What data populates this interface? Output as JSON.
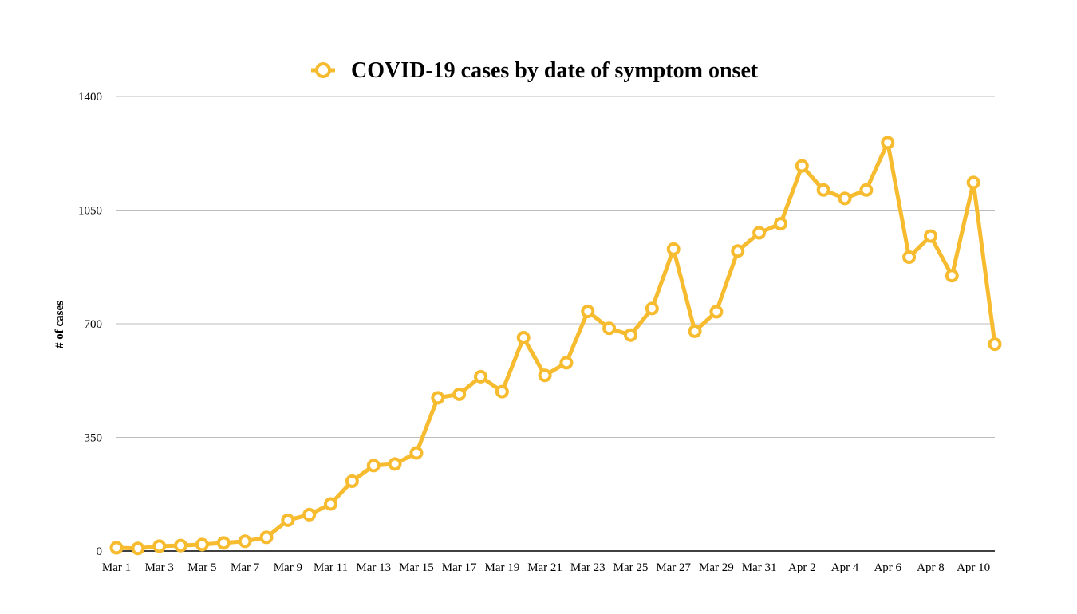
{
  "chart_data": {
    "type": "line",
    "title": "COVID-19 cases by date of symptom onset",
    "legend": {
      "label": "COVID-19 cases by date of symptom onset",
      "position": "top"
    },
    "xlabel": "",
    "ylabel": "# of cases",
    "ylim": [
      0,
      1400
    ],
    "yticks": [
      0,
      350,
      700,
      1050,
      1400
    ],
    "grid": true,
    "color": "#F6BB2E",
    "x": [
      "Mar 1",
      "Mar 2",
      "Mar 3",
      "Mar 4",
      "Mar 5",
      "Mar 6",
      "Mar 7",
      "Mar 8",
      "Mar 9",
      "Mar 10",
      "Mar 11",
      "Mar 12",
      "Mar 13",
      "Mar 14",
      "Mar 15",
      "Mar 16",
      "Mar 17",
      "Mar 18",
      "Mar 19",
      "Mar 20",
      "Mar 21",
      "Mar 22",
      "Mar 23",
      "Mar 24",
      "Mar 25",
      "Mar 26",
      "Mar 27",
      "Mar 28",
      "Mar 29",
      "Mar 30",
      "Mar 31",
      "Apr 1",
      "Apr 2",
      "Apr 3",
      "Apr 4",
      "Apr 5",
      "Apr 6",
      "Apr 7",
      "Apr 8",
      "Apr 9",
      "Apr 10",
      "Apr 11"
    ],
    "xtick_labels": [
      "Mar 1",
      "Mar 3",
      "Mar 5",
      "Mar 7",
      "Mar 9",
      "Mar 11",
      "Mar 13",
      "Mar 15",
      "Mar 17",
      "Mar 19",
      "Mar 21",
      "Mar 23",
      "Mar 25",
      "Mar 27",
      "Mar 29",
      "Mar 31",
      "Apr 2",
      "Apr 4",
      "Apr 6",
      "Apr 8",
      "Apr 10"
    ],
    "series": [
      {
        "name": "COVID-19 cases by date of symptom onset",
        "values": [
          10,
          8,
          15,
          17,
          20,
          25,
          30,
          42,
          95,
          112,
          145,
          215,
          263,
          268,
          302,
          472,
          483,
          537,
          491,
          657,
          541,
          580,
          738,
          686,
          665,
          747,
          930,
          677,
          737,
          924,
          980,
          1008,
          1186,
          1112,
          1086,
          1112,
          1258,
          905,
          970,
          848,
          1135,
          637
        ]
      }
    ]
  }
}
